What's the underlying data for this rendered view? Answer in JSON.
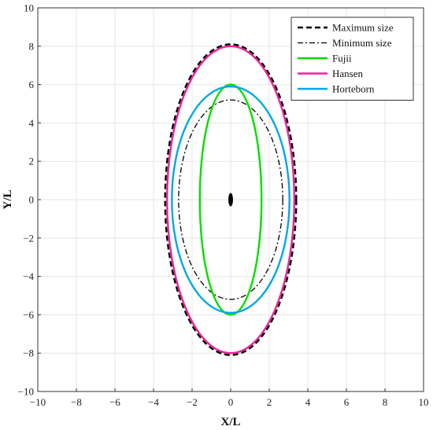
{
  "chart_data": {
    "type": "line",
    "xlabel": "X/L",
    "ylabel": "Y/L",
    "xlim": [
      -10,
      10
    ],
    "ylim": [
      -10,
      10
    ],
    "xticks": [
      -10,
      -8,
      -6,
      -4,
      -2,
      0,
      2,
      4,
      6,
      8,
      10
    ],
    "yticks": [
      -10,
      -8,
      -6,
      -4,
      -2,
      0,
      2,
      4,
      6,
      8,
      10
    ],
    "grid": true,
    "legend_position": "top-right",
    "series": [
      {
        "name": "Maximum size",
        "shape": "ellipse",
        "center": [
          0,
          0
        ],
        "semi_axis_x": 3.4,
        "semi_axis_y": 8.1,
        "color": "#000000",
        "dash": "dashed"
      },
      {
        "name": "Minimum size",
        "shape": "ellipse",
        "center": [
          0,
          0
        ],
        "semi_axis_x": 2.7,
        "semi_axis_y": 5.2,
        "color": "#000000",
        "dash": "dashdot"
      },
      {
        "name": "Fujii",
        "shape": "ellipse",
        "center": [
          0,
          0
        ],
        "semi_axis_x": 1.6,
        "semi_axis_y": 6.0,
        "color": "#00e000",
        "dash": "solid"
      },
      {
        "name": "Hansen",
        "shape": "ellipse",
        "center": [
          0,
          0
        ],
        "semi_axis_x": 3.3,
        "semi_axis_y": 8.0,
        "color": "#e8259a",
        "dash": "solid"
      },
      {
        "name": "Horteborn",
        "shape": "ellipse",
        "center": [
          0,
          0
        ],
        "semi_axis_x": 3.05,
        "semi_axis_y": 5.9,
        "color": "#00a8e8",
        "dash": "solid"
      }
    ],
    "ship": {
      "shape": "ellipse",
      "center": [
        0,
        0
      ],
      "semi_axis_x": 0.12,
      "semi_axis_y": 0.35,
      "color": "#000000"
    }
  }
}
